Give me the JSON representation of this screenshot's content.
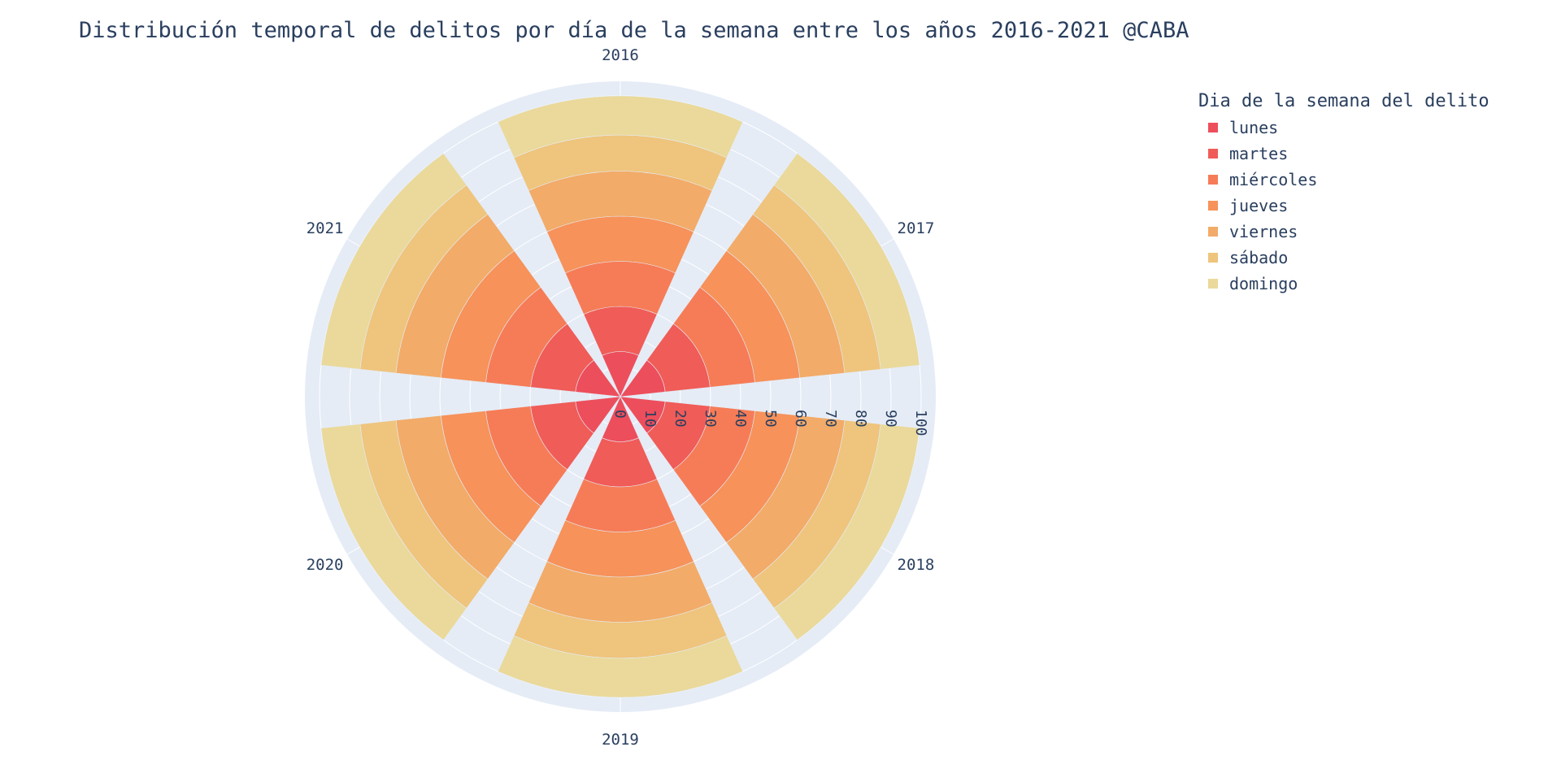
{
  "chart_data": {
    "type": "barpolar",
    "title": "Distribución temporal de delitos por día de la semana entre los años 2016-2021 @CABA",
    "legend_title": "Dia de la semana del delito",
    "legend_position": "top-right",
    "categories": [
      "2016",
      "2017",
      "2018",
      "2019",
      "2020",
      "2021"
    ],
    "radial_range": [
      0,
      100
    ],
    "radial_ticks": [
      0,
      10,
      20,
      30,
      40,
      50,
      60,
      70,
      80,
      90,
      100
    ],
    "radial_tick_labels": [
      "0",
      "10",
      "20",
      "30",
      "40",
      "50",
      "60",
      "70",
      "80",
      "90",
      "100"
    ],
    "stacked": true,
    "bar_width_fraction": 0.8,
    "series": [
      {
        "name": "lunes",
        "color": "#ed4e5c",
        "values": [
          15,
          15,
          15,
          15,
          15,
          15
        ]
      },
      {
        "name": "martes",
        "color": "#f05c58",
        "values": [
          15,
          15,
          15,
          15,
          15,
          15
        ]
      },
      {
        "name": "miércoles",
        "color": "#f67c57",
        "values": [
          15,
          15,
          15,
          15,
          15,
          15
        ]
      },
      {
        "name": "jueves",
        "color": "#f6925a",
        "values": [
          15,
          15,
          15,
          15,
          15,
          15
        ]
      },
      {
        "name": "viernes",
        "color": "#f2ab68",
        "values": [
          15,
          15,
          15,
          15,
          15,
          15
        ]
      },
      {
        "name": "sábado",
        "color": "#efc47d",
        "values": [
          12,
          12,
          12,
          12,
          12,
          12
        ]
      },
      {
        "name": "domingo",
        "color": "#ead99a",
        "values": [
          13,
          13,
          13,
          13,
          13,
          13
        ]
      }
    ],
    "grid": true,
    "polar_background": "#e5ecf6"
  }
}
